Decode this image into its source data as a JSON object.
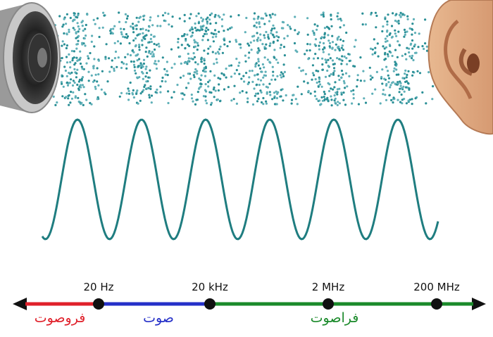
{
  "scale": {
    "ticks": [
      "20 Hz",
      "20 kHz",
      "2 MHz",
      "200 MHz"
    ],
    "ranges": [
      {
        "label": "فروصوت",
        "color": "#e0202a"
      },
      {
        "label": "صوت",
        "color": "#2530c8"
      },
      {
        "label": "فراصوت",
        "color": "#1a8a2a"
      }
    ]
  }
}
